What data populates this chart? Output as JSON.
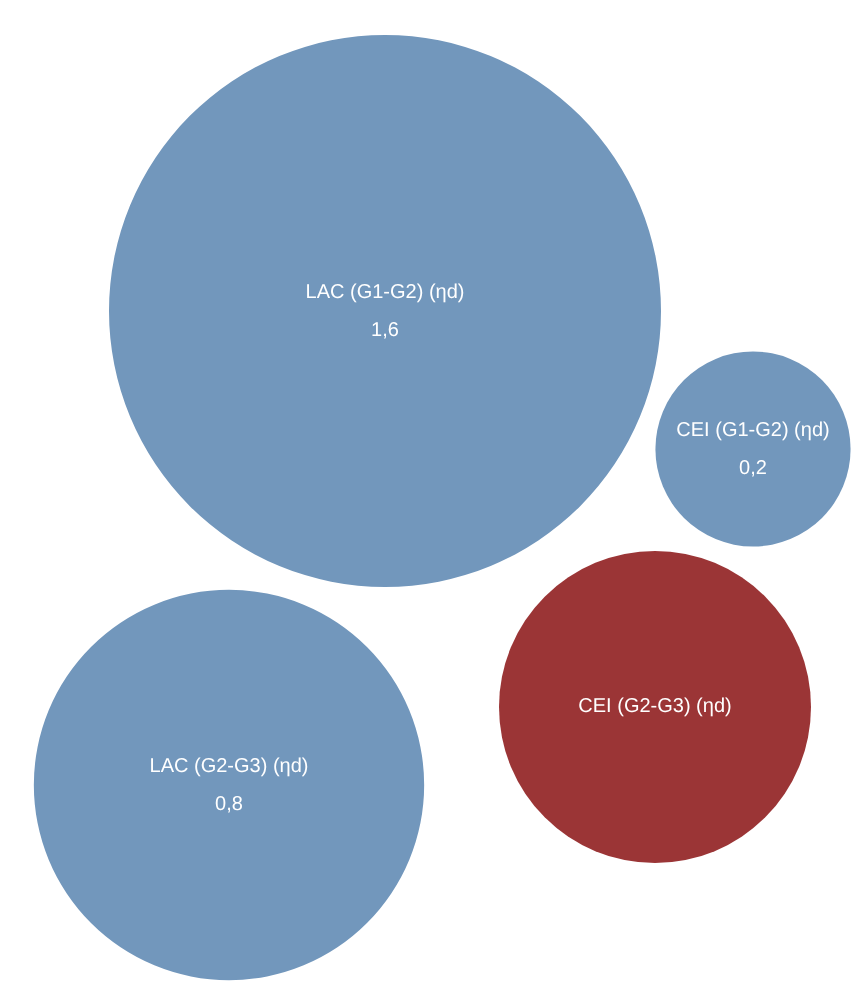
{
  "chart_data": {
    "type": "other",
    "categories": [
      "LAC (G1-G2) (ηd)",
      "CEI (G1-G2) (ηd)",
      "LAC (G2-G3) (ηd)",
      "CEI (G2-G3) (ηd)"
    ],
    "values": [
      1.6,
      0.2,
      0.8,
      null
    ],
    "value_labels": [
      "1,6",
      "0,2",
      "0,8",
      null
    ],
    "colors": [
      "#7297bc",
      "#7297bc",
      "#7297bc",
      "#9b3536"
    ]
  }
}
